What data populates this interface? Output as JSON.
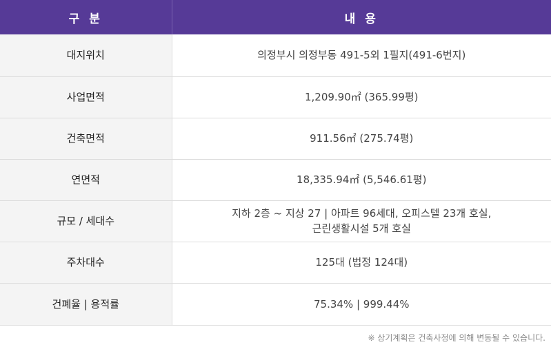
{
  "table": {
    "header": {
      "col1": "구 분",
      "col2": "내 용"
    },
    "rows": [
      {
        "label": "대지위치",
        "value": [
          "의정부시 의정부동 491-5외 1필지(491-6번지)"
        ]
      },
      {
        "label": "사업면적",
        "value": [
          "1,209.90㎡ (365.99평)"
        ]
      },
      {
        "label": "건축면적",
        "value": [
          "911.56㎡ (275.74평)"
        ]
      },
      {
        "label": "연면적",
        "value": [
          "18,335.94㎡ (5,546.61평)"
        ]
      },
      {
        "label": "규모 / 세대수",
        "value": [
          "지하 2층 ~ 지상 27  |  아파트 96세대, 오피스텔 23개 호실,",
          "근린생활시설 5개 호실"
        ]
      },
      {
        "label": "주차대수",
        "value": [
          "125대 (법정 124대)"
        ]
      },
      {
        "label": "건폐율  |  용적률",
        "value": [
          "75.34%  |  999.44%"
        ]
      }
    ]
  },
  "note": "※ 상기계획은 건축사정에 의해 변동될 수 있습니다."
}
